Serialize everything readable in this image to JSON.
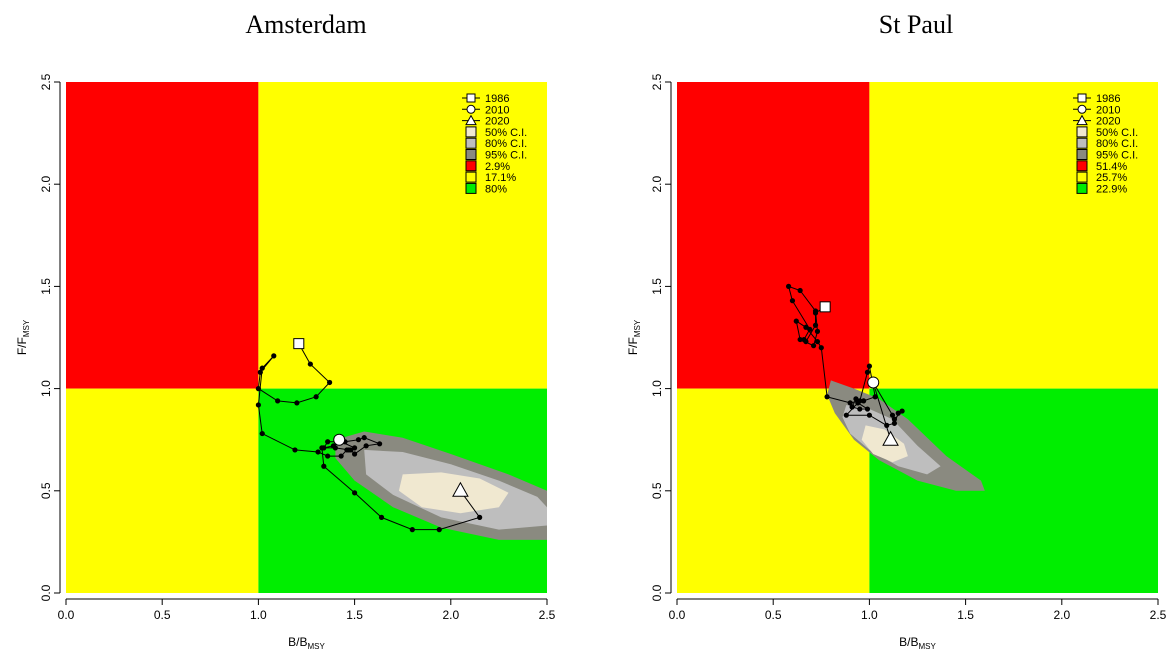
{
  "panels": [
    {
      "title": "Amsterdam"
    },
    {
      "title": "St Paul"
    }
  ],
  "chart_data": [
    {
      "type": "scatter",
      "title": "Amsterdam",
      "xlabel": {
        "main": "B/B",
        "sub": "MSY"
      },
      "ylabel": {
        "main": "F/F",
        "sub": "MSY"
      },
      "xlim": [
        0,
        2.5
      ],
      "ylim": [
        0,
        2.5
      ],
      "xticks": [
        "0.0",
        "0.5",
        "1.0",
        "1.5",
        "2.0",
        "2.5"
      ],
      "yticks": [
        "0.0",
        "0.5",
        "1.0",
        "1.5",
        "2.0",
        "2.5"
      ],
      "quadrant_colors": {
        "red": "#ff0000",
        "yellow": "#ffff00",
        "green": "#00ee00"
      },
      "ci_colors": {
        "ci50": "#f0e8d0",
        "ci80": "#bebebe",
        "ci95": "#8a8a80"
      },
      "ci_regions": {
        "ci95": [
          [
            1.4,
            0.75
          ],
          [
            1.55,
            0.79
          ],
          [
            1.75,
            0.76
          ],
          [
            2.0,
            0.68
          ],
          [
            2.3,
            0.58
          ],
          [
            2.5,
            0.5
          ],
          [
            2.5,
            0.26
          ],
          [
            2.25,
            0.26
          ],
          [
            1.95,
            0.32
          ],
          [
            1.7,
            0.42
          ],
          [
            1.5,
            0.55
          ],
          [
            1.4,
            0.66
          ]
        ],
        "ci80": [
          [
            1.55,
            0.7
          ],
          [
            1.75,
            0.69
          ],
          [
            2.0,
            0.63
          ],
          [
            2.25,
            0.55
          ],
          [
            2.45,
            0.47
          ],
          [
            2.5,
            0.42
          ],
          [
            2.5,
            0.33
          ],
          [
            2.25,
            0.31
          ],
          [
            1.95,
            0.37
          ],
          [
            1.7,
            0.48
          ],
          [
            1.56,
            0.58
          ]
        ],
        "ci50": [
          [
            1.75,
            0.58
          ],
          [
            1.95,
            0.59
          ],
          [
            2.15,
            0.56
          ],
          [
            2.3,
            0.49
          ],
          [
            2.25,
            0.42
          ],
          [
            2.05,
            0.39
          ],
          [
            1.85,
            0.42
          ],
          [
            1.73,
            0.5
          ]
        ]
      },
      "trajectory": [
        [
          1.21,
          1.22
        ],
        [
          1.27,
          1.12
        ],
        [
          1.37,
          1.03
        ],
        [
          1.3,
          0.96
        ],
        [
          1.2,
          0.93
        ],
        [
          1.1,
          0.94
        ],
        [
          1.0,
          1.0
        ],
        [
          1.01,
          1.08
        ],
        [
          1.08,
          1.16
        ],
        [
          1.02,
          1.1
        ],
        [
          1.0,
          0.92
        ],
        [
          1.02,
          0.78
        ],
        [
          1.19,
          0.7
        ],
        [
          1.31,
          0.69
        ],
        [
          1.36,
          0.67
        ],
        [
          1.43,
          0.67
        ],
        [
          1.46,
          0.7
        ],
        [
          1.5,
          0.71
        ],
        [
          1.43,
          0.74
        ],
        [
          1.39,
          0.72
        ],
        [
          1.34,
          0.71
        ],
        [
          1.36,
          0.74
        ],
        [
          1.45,
          0.74
        ],
        [
          1.52,
          0.75
        ],
        [
          1.55,
          0.76
        ],
        [
          1.63,
          0.73
        ],
        [
          1.56,
          0.72
        ],
        [
          1.5,
          0.68
        ],
        [
          1.48,
          0.7
        ],
        [
          1.47,
          0.7
        ],
        [
          1.4,
          0.71
        ],
        [
          1.33,
          0.71
        ],
        [
          1.34,
          0.62
        ],
        [
          1.5,
          0.49
        ],
        [
          1.64,
          0.37
        ],
        [
          1.8,
          0.31
        ],
        [
          1.94,
          0.31
        ],
        [
          2.15,
          0.37
        ],
        [
          2.05,
          0.5
        ]
      ],
      "markers": {
        "start": {
          "label": "1986",
          "x": 1.21,
          "y": 1.22
        },
        "mid": {
          "label": "2010",
          "x": 1.42,
          "y": 0.75
        },
        "end": {
          "label": "2020",
          "x": 2.05,
          "y": 0.5
        }
      },
      "legend": {
        "lines": [
          {
            "label": "1986",
            "shape": "square"
          },
          {
            "label": "2010",
            "shape": "circle"
          },
          {
            "label": "2020",
            "shape": "triangle"
          }
        ],
        "boxes": [
          {
            "label": "50% C.I.",
            "color": "#f0e8d0"
          },
          {
            "label": "80% C.I.",
            "color": "#bebebe"
          },
          {
            "label": "95% C.I.",
            "color": "#8a8a80"
          },
          {
            "label": "2.9%",
            "color": "#ff0000"
          },
          {
            "label": "17.1%",
            "color": "#ffff00"
          },
          {
            "label": "80%",
            "color": "#00ee00"
          }
        ]
      }
    },
    {
      "type": "scatter",
      "title": "St Paul",
      "xlabel": {
        "main": "B/B",
        "sub": "MSY"
      },
      "ylabel": {
        "main": "F/F",
        "sub": "MSY"
      },
      "xlim": [
        0,
        2.5
      ],
      "ylim": [
        0,
        2.5
      ],
      "xticks": [
        "0.0",
        "0.5",
        "1.0",
        "1.5",
        "2.0",
        "2.5"
      ],
      "yticks": [
        "0.0",
        "0.5",
        "1.0",
        "1.5",
        "2.0",
        "2.5"
      ],
      "quadrant_colors": {
        "red": "#ff0000",
        "yellow": "#ffff00",
        "green": "#00ee00"
      },
      "ci_colors": {
        "ci50": "#f0e8d0",
        "ci80": "#bebebe",
        "ci95": "#8a8a80"
      },
      "ci_regions": {
        "ci95": [
          [
            0.8,
            1.04
          ],
          [
            0.92,
            1.0
          ],
          [
            1.05,
            0.95
          ],
          [
            1.2,
            0.85
          ],
          [
            1.4,
            0.67
          ],
          [
            1.58,
            0.55
          ],
          [
            1.6,
            0.5
          ],
          [
            1.45,
            0.5
          ],
          [
            1.25,
            0.55
          ],
          [
            1.05,
            0.65
          ],
          [
            0.92,
            0.75
          ],
          [
            0.82,
            0.88
          ],
          [
            0.78,
            0.97
          ]
        ],
        "ci80": [
          [
            0.88,
            0.92
          ],
          [
            1.0,
            0.9
          ],
          [
            1.12,
            0.85
          ],
          [
            1.25,
            0.72
          ],
          [
            1.37,
            0.62
          ],
          [
            1.3,
            0.58
          ],
          [
            1.15,
            0.62
          ],
          [
            1.0,
            0.7
          ],
          [
            0.9,
            0.78
          ],
          [
            0.86,
            0.86
          ]
        ],
        "ci50": [
          [
            0.98,
            0.82
          ],
          [
            1.08,
            0.8
          ],
          [
            1.18,
            0.73
          ],
          [
            1.2,
            0.67
          ],
          [
            1.12,
            0.64
          ],
          [
            1.02,
            0.68
          ],
          [
            0.96,
            0.75
          ]
        ]
      },
      "trajectory": [
        [
          0.77,
          1.4
        ],
        [
          0.72,
          1.37
        ],
        [
          0.72,
          1.31
        ],
        [
          0.67,
          1.23
        ],
        [
          0.66,
          1.24
        ],
        [
          0.69,
          1.29
        ],
        [
          0.6,
          1.43
        ],
        [
          0.58,
          1.5
        ],
        [
          0.64,
          1.48
        ],
        [
          0.72,
          1.38
        ],
        [
          0.73,
          1.28
        ],
        [
          0.71,
          1.21
        ],
        [
          0.64,
          1.24
        ],
        [
          0.62,
          1.33
        ],
        [
          0.67,
          1.3
        ],
        [
          0.73,
          1.23
        ],
        [
          0.75,
          1.2
        ],
        [
          0.78,
          0.96
        ],
        [
          0.9,
          0.93
        ],
        [
          0.95,
          0.94
        ],
        [
          0.99,
          1.08
        ],
        [
          1.0,
          1.11
        ],
        [
          1.03,
          0.96
        ],
        [
          0.97,
          0.94
        ],
        [
          0.93,
          0.95
        ],
        [
          0.91,
          0.91
        ],
        [
          0.95,
          0.9
        ],
        [
          0.99,
          0.9
        ],
        [
          0.94,
          0.93
        ],
        [
          0.88,
          0.87
        ],
        [
          1.0,
          0.87
        ],
        [
          1.09,
          0.82
        ],
        [
          1.13,
          0.83
        ],
        [
          1.15,
          0.88
        ],
        [
          1.17,
          0.89
        ],
        [
          1.13,
          0.85
        ],
        [
          1.12,
          0.87
        ],
        [
          1.02,
          1.03
        ],
        [
          1.11,
          0.75
        ]
      ],
      "markers": {
        "start": {
          "label": "1986",
          "x": 0.77,
          "y": 1.4
        },
        "mid": {
          "label": "2010",
          "x": 1.02,
          "y": 1.03
        },
        "end": {
          "label": "2020",
          "x": 1.11,
          "y": 0.75
        }
      },
      "legend": {
        "lines": [
          {
            "label": "1986",
            "shape": "square"
          },
          {
            "label": "2010",
            "shape": "circle"
          },
          {
            "label": "2020",
            "shape": "triangle"
          }
        ],
        "boxes": [
          {
            "label": "50% C.I.",
            "color": "#f0e8d0"
          },
          {
            "label": "80% C.I.",
            "color": "#bebebe"
          },
          {
            "label": "95% C.I.",
            "color": "#8a8a80"
          },
          {
            "label": "51.4%",
            "color": "#ff0000"
          },
          {
            "label": "25.7%",
            "color": "#ffff00"
          },
          {
            "label": "22.9%",
            "color": "#00ee00"
          }
        ]
      }
    }
  ]
}
